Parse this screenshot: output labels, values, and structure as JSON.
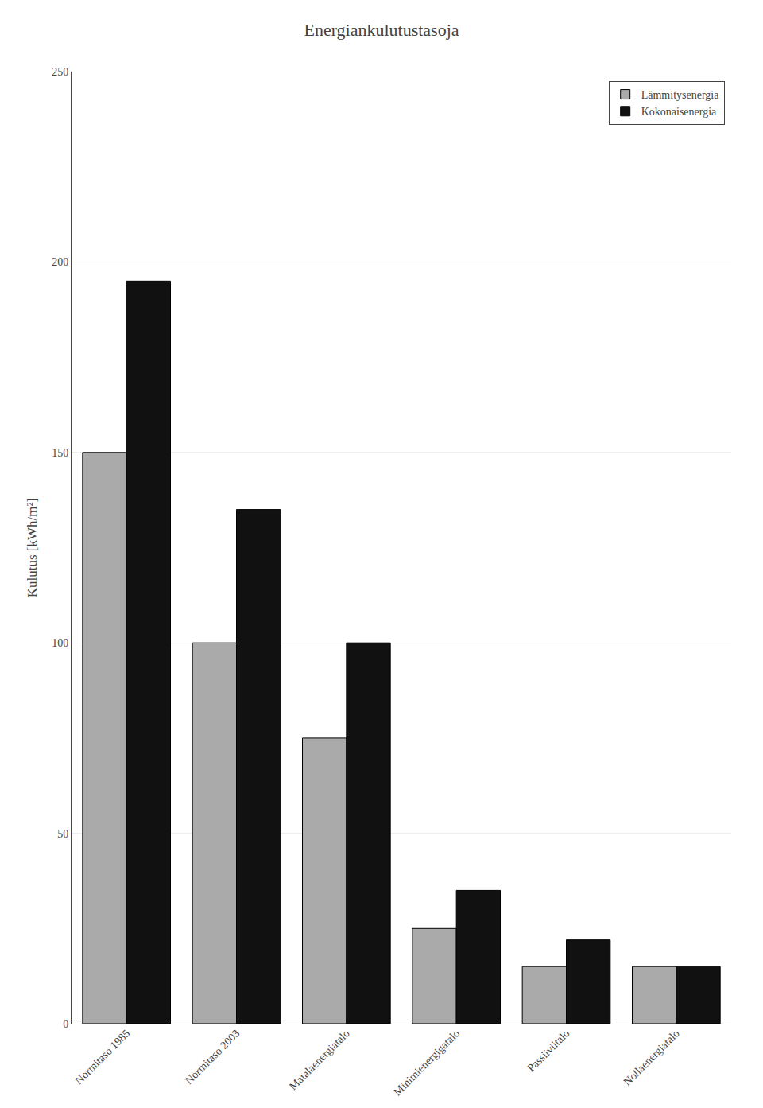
{
  "chart_data": {
    "type": "bar",
    "title": "Energiankulutustasoja",
    "ylabel": "Kulutus [kWh/m²]",
    "categories": [
      "Normitaso 1985",
      "Normitaso 2003",
      "Matalaenergiatalo",
      "Minimienergigatalo",
      "Passiiviitalo",
      "Nollaenergiatalo"
    ],
    "series": [
      {
        "name": "Lämmitysenergia",
        "color": "#aaaaaa",
        "values": [
          150,
          100,
          75,
          25,
          15,
          15
        ]
      },
      {
        "name": "Kokonaisenergia",
        "color": "#111111",
        "values": [
          195,
          135,
          100,
          35,
          22,
          15
        ]
      }
    ],
    "ylim": [
      0,
      250
    ],
    "yticks": [
      0,
      50,
      100,
      150,
      200,
      250
    ],
    "grid": true,
    "legend": "upper right"
  }
}
